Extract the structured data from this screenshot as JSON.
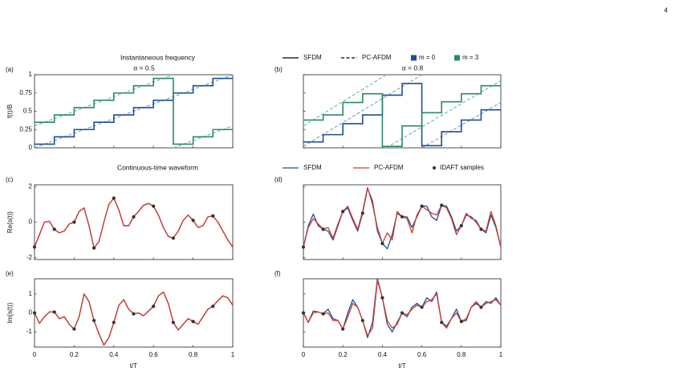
{
  "page_number": "4",
  "chart_data": [
    {
      "type": "frequency",
      "panel": "(a)",
      "title": "Instantaneous frequency",
      "subtitle": "α = 0.5",
      "ylabel": "f(t)/B",
      "xlim": [
        0,
        1
      ],
      "xticks": [
        0,
        0.2,
        0.4,
        0.6,
        0.8,
        1
      ],
      "xtick_labels": false,
      "ylim": [
        0,
        1
      ],
      "yticks": [
        0,
        0.25,
        0.5,
        0.75,
        1
      ],
      "ytick_labels": true,
      "series": [
        {
          "type": "line",
          "dashed": true,
          "color": "#6f9fd4",
          "x": [
            0,
            1
          ],
          "values": [
            0,
            1
          ]
        },
        {
          "type": "line",
          "dashed": true,
          "color": "#66b896",
          "x": [
            0,
            0.7,
            0.7,
            0.7,
            1
          ],
          "values": [
            0.3,
            1,
            null,
            0,
            0.3
          ]
        },
        {
          "type": "step",
          "color": "#1f4e96",
          "x": [
            0,
            0.1,
            0.2,
            0.3,
            0.4,
            0.5,
            0.6,
            0.7,
            0.8,
            0.9
          ],
          "values": [
            0.05,
            0.15,
            0.25,
            0.35,
            0.45,
            0.55,
            0.65,
            0.75,
            0.85,
            0.95
          ]
        },
        {
          "type": "step",
          "color": "#2a8a66",
          "x": [
            0,
            0.1,
            0.2,
            0.3,
            0.4,
            0.5,
            0.6,
            0.7,
            0.8,
            0.9
          ],
          "values": [
            0.35,
            0.45,
            0.55,
            0.65,
            0.75,
            0.85,
            0.95,
            0.05,
            0.15,
            0.25
          ]
        }
      ]
    },
    {
      "type": "frequency",
      "panel": "(b)",
      "subtitle": "α = 0.8",
      "xlim": [
        0,
        1
      ],
      "xticks": [
        0,
        0.2,
        0.4,
        0.6,
        0.8,
        1
      ],
      "xtick_labels": false,
      "ylim": [
        0,
        1
      ],
      "yticks": [
        0,
        0.25,
        0.5,
        0.75,
        1
      ],
      "ytick_labels": false,
      "legend": [
        {
          "label": "SFDM",
          "color": "#000000",
          "marker": "line"
        },
        {
          "label": "PC-AFDM",
          "color": "#000000",
          "marker": "dashed"
        },
        {
          "label": "m = 0",
          "color": "#1f4e96",
          "marker": "square"
        },
        {
          "label": "m = 3",
          "color": "#2a8a66",
          "marker": "square"
        }
      ],
      "series": [
        {
          "type": "line",
          "dashed": true,
          "color": "#6f9fd4",
          "x": [
            0,
            0.6,
            0.6,
            0.6,
            1
          ],
          "values": [
            0.02,
            1,
            null,
            0,
            0.62
          ]
        },
        {
          "type": "line",
          "dashed": true,
          "color": "#66b896",
          "x": [
            0,
            0.42,
            0.42,
            0.42,
            1
          ],
          "values": [
            0.3,
            1,
            null,
            0,
            0.92
          ]
        },
        {
          "type": "step",
          "color": "#1f4e96",
          "x": [
            0,
            0.1,
            0.2,
            0.3,
            0.4,
            0.5,
            0.6,
            0.7,
            0.8,
            0.9
          ],
          "values": [
            0.08,
            0.18,
            0.33,
            0.45,
            0.72,
            0.88,
            0.03,
            0.22,
            0.38,
            0.52
          ]
        },
        {
          "type": "step",
          "color": "#2a8a66",
          "x": [
            0,
            0.1,
            0.2,
            0.3,
            0.4,
            0.5,
            0.6,
            0.7,
            0.8,
            0.9
          ],
          "values": [
            0.38,
            0.45,
            0.62,
            0.74,
            0.02,
            0.3,
            0.48,
            0.63,
            0.74,
            0.85
          ]
        }
      ]
    },
    {
      "type": "waveform",
      "panel": "(c)",
      "title": "Continuous-time waveform",
      "ylabel": "Re{s(t)}",
      "xlim": [
        0,
        1
      ],
      "xticks": [
        0,
        0.2,
        0.4,
        0.6,
        0.8,
        1
      ],
      "xtick_labels": false,
      "ylim": [
        -2.1,
        2.1
      ],
      "yticks": [
        -2,
        0,
        2
      ],
      "ytick_labels": true,
      "x": [
        0,
        0.025,
        0.05,
        0.075,
        0.1,
        0.125,
        0.15,
        0.175,
        0.2,
        0.225,
        0.25,
        0.275,
        0.3,
        0.325,
        0.35,
        0.375,
        0.4,
        0.425,
        0.45,
        0.475,
        0.5,
        0.525,
        0.55,
        0.575,
        0.6,
        0.625,
        0.65,
        0.675,
        0.7,
        0.725,
        0.75,
        0.775,
        0.8,
        0.825,
        0.85,
        0.875,
        0.9,
        0.925,
        0.95,
        0.975,
        1
      ],
      "series": [
        {
          "type": "line",
          "color": "#1f4e96",
          "values": [
            -1.4,
            -0.7,
            0,
            0.05,
            -0.4,
            -0.6,
            -0.5,
            -0.1,
            0,
            0.6,
            0.8,
            -0.2,
            -1.45,
            -1.1,
            0,
            1.0,
            1.35,
            0.7,
            -0.2,
            -0.2,
            0.3,
            0.6,
            0.95,
            1.05,
            0.9,
            0.4,
            -0.3,
            -0.8,
            -0.9,
            -0.5,
            0.1,
            0.4,
            0.1,
            -0.3,
            -0.2,
            0.3,
            0.35,
            0,
            -0.5,
            -1.0,
            -1.4
          ]
        },
        {
          "type": "line",
          "color": "#d03a2a",
          "values": [
            -1.4,
            -0.7,
            0,
            0.05,
            -0.4,
            -0.6,
            -0.5,
            -0.1,
            0,
            0.6,
            0.8,
            -0.2,
            -1.45,
            -1.1,
            0,
            1.0,
            1.35,
            0.7,
            -0.2,
            -0.2,
            0.3,
            0.6,
            0.95,
            1.05,
            0.9,
            0.4,
            -0.3,
            -0.8,
            -0.9,
            -0.5,
            0.1,
            0.4,
            0.1,
            -0.3,
            -0.2,
            0.3,
            0.35,
            0,
            -0.5,
            -1.0,
            -1.4
          ]
        },
        {
          "type": "scatter",
          "color": "#333333",
          "x": [
            0,
            0.1,
            0.2,
            0.3,
            0.4,
            0.5,
            0.6,
            0.7,
            0.8,
            0.9
          ],
          "values": [
            -1.4,
            -0.4,
            0,
            -1.45,
            1.35,
            0.3,
            0.9,
            -0.9,
            0.1,
            0.35
          ]
        }
      ]
    },
    {
      "type": "waveform",
      "panel": "(d)",
      "xlim": [
        0,
        1
      ],
      "xticks": [
        0,
        0.2,
        0.4,
        0.6,
        0.8,
        1
      ],
      "xtick_labels": false,
      "ylim": [
        -2.1,
        2.1
      ],
      "yticks": [
        -2,
        0,
        2
      ],
      "ytick_labels": false,
      "legend": true,
      "x": [
        0,
        0.025,
        0.05,
        0.075,
        0.1,
        0.125,
        0.15,
        0.175,
        0.2,
        0.225,
        0.25,
        0.275,
        0.3,
        0.325,
        0.35,
        0.375,
        0.4,
        0.425,
        0.45,
        0.475,
        0.5,
        0.525,
        0.55,
        0.575,
        0.6,
        0.625,
        0.65,
        0.675,
        0.7,
        0.725,
        0.75,
        0.775,
        0.8,
        0.825,
        0.85,
        0.875,
        0.9,
        0.925,
        0.95,
        0.975,
        1
      ],
      "series": [
        {
          "type": "line",
          "name": "SFDM",
          "color": "#1f4e96",
          "values": [
            -1.4,
            -0.2,
            0.45,
            -0.2,
            -0.4,
            -0.5,
            -1.0,
            -0.2,
            0.6,
            0.8,
            0.1,
            -0.5,
            0.5,
            1.9,
            1.2,
            -0.5,
            -1.2,
            -1.5,
            -0.7,
            0.5,
            0.3,
            0.3,
            -0.3,
            0.3,
            0.9,
            0.9,
            0.3,
            0.1,
            0.95,
            0.9,
            0.3,
            -0.5,
            -0.2,
            0.4,
            0.3,
            0,
            -0.4,
            -0.6,
            0.4,
            -0.3,
            -1.4
          ]
        },
        {
          "type": "line",
          "name": "PC-AFDM",
          "color": "#d03a2a",
          "values": [
            -1.4,
            -0.3,
            0.2,
            -0.1,
            -0.4,
            -0.3,
            -0.9,
            -0.1,
            0.6,
            0.9,
            0.2,
            -0.4,
            0.6,
            1.95,
            1.0,
            -0.3,
            -1.2,
            -0.6,
            -1.0,
            0.6,
            0.3,
            0.2,
            -0.6,
            0.4,
            0.9,
            0.7,
            0.5,
            0.4,
            0.95,
            0.8,
            0.2,
            -0.7,
            -0.2,
            0.5,
            0.2,
            0.1,
            -0.4,
            -0.5,
            0.6,
            -0.2,
            -1.4
          ]
        },
        {
          "type": "scatter",
          "name": "IDAFT samples",
          "color": "#333333",
          "x": [
            0,
            0.1,
            0.2,
            0.3,
            0.4,
            0.5,
            0.6,
            0.7,
            0.8,
            0.9
          ],
          "values": [
            -1.4,
            -0.4,
            0.6,
            0.5,
            -1.2,
            0.3,
            0.9,
            0.95,
            -0.2,
            -0.4
          ]
        }
      ]
    },
    {
      "type": "waveform",
      "panel": "(e)",
      "ylabel": "Im{s(t)}",
      "xlabel": "t/T",
      "xlim": [
        0,
        1
      ],
      "xticks": [
        0,
        0.2,
        0.4,
        0.6,
        0.8,
        1
      ],
      "xtick_labels": true,
      "ylim": [
        -1.8,
        1.8
      ],
      "yticks": [
        -1,
        0,
        1
      ],
      "ytick_labels": true,
      "x": [
        0,
        0.025,
        0.05,
        0.075,
        0.1,
        0.125,
        0.15,
        0.175,
        0.2,
        0.225,
        0.25,
        0.275,
        0.3,
        0.325,
        0.35,
        0.375,
        0.4,
        0.425,
        0.45,
        0.475,
        0.5,
        0.525,
        0.55,
        0.575,
        0.6,
        0.625,
        0.65,
        0.675,
        0.7,
        0.725,
        0.75,
        0.775,
        0.8,
        0.825,
        0.85,
        0.875,
        0.9,
        0.925,
        0.95,
        0.975,
        1
      ],
      "series": [
        {
          "type": "line",
          "color": "#1f4e96",
          "values": [
            0,
            -0.55,
            -0.2,
            0.05,
            0.05,
            -0.3,
            -0.2,
            -0.6,
            -0.85,
            -0.2,
            1.0,
            0.6,
            -0.4,
            -1.1,
            -1.7,
            -1.3,
            -0.5,
            0.4,
            0.7,
            0.2,
            -0.05,
            0,
            -0.15,
            0.1,
            0.35,
            0.9,
            1.1,
            0.5,
            -0.5,
            -0.9,
            -0.6,
            -0.3,
            -0.45,
            -0.6,
            -0.2,
            0.2,
            0.35,
            0.65,
            0.9,
            0.8,
            0.4
          ]
        },
        {
          "type": "line",
          "color": "#d03a2a",
          "values": [
            0,
            -0.55,
            -0.2,
            0.05,
            0.05,
            -0.3,
            -0.2,
            -0.6,
            -0.85,
            -0.2,
            1.0,
            0.6,
            -0.4,
            -1.1,
            -1.7,
            -1.3,
            -0.5,
            0.4,
            0.7,
            0.2,
            -0.05,
            0,
            -0.15,
            0.1,
            0.35,
            0.9,
            1.1,
            0.5,
            -0.5,
            -0.9,
            -0.6,
            -0.3,
            -0.45,
            -0.6,
            -0.2,
            0.2,
            0.35,
            0.65,
            0.9,
            0.8,
            0.4
          ]
        },
        {
          "type": "scatter",
          "color": "#333333",
          "x": [
            0,
            0.1,
            0.2,
            0.3,
            0.4,
            0.5,
            0.6,
            0.7,
            0.8,
            0.9
          ],
          "values": [
            0,
            0.05,
            -0.85,
            -0.4,
            -0.5,
            -0.05,
            0.35,
            -0.5,
            -0.45,
            0.35
          ]
        }
      ]
    },
    {
      "type": "waveform",
      "panel": "(f)",
      "xlabel": "t/T",
      "xlim": [
        0,
        1
      ],
      "xticks": [
        0,
        0.2,
        0.4,
        0.6,
        0.8,
        1
      ],
      "xtick_labels": true,
      "ylim": [
        -1.8,
        1.8
      ],
      "yticks": [
        -1,
        0,
        1
      ],
      "ytick_labels": false,
      "x": [
        0,
        0.025,
        0.05,
        0.075,
        0.1,
        0.125,
        0.15,
        0.175,
        0.2,
        0.225,
        0.25,
        0.275,
        0.3,
        0.325,
        0.35,
        0.375,
        0.4,
        0.425,
        0.45,
        0.475,
        0.5,
        0.525,
        0.55,
        0.575,
        0.6,
        0.625,
        0.65,
        0.675,
        0.7,
        0.725,
        0.75,
        0.775,
        0.8,
        0.825,
        0.85,
        0.875,
        0.9,
        0.925,
        0.95,
        0.975,
        1
      ],
      "series": [
        {
          "type": "line",
          "color": "#1f4e96",
          "values": [
            0,
            -0.5,
            0.1,
            0.05,
            -0.05,
            0.2,
            -0.3,
            -0.4,
            -0.85,
            0,
            0.7,
            0.3,
            -0.4,
            -1.3,
            -0.5,
            1.8,
            0.8,
            -0.6,
            -1.0,
            -0.5,
            0,
            -0.2,
            0.3,
            0.5,
            0.3,
            0.8,
            0.6,
            1.1,
            -0.5,
            -0.7,
            -0.3,
            0.2,
            -0.45,
            -0.4,
            0.3,
            0.5,
            0.3,
            0.6,
            0.5,
            0.8,
            0.4
          ]
        },
        {
          "type": "line",
          "color": "#d03a2a",
          "values": [
            0,
            -0.5,
            0,
            0.05,
            -0.05,
            0,
            -0.4,
            -0.4,
            -0.85,
            -0.2,
            0.5,
            0.3,
            -0.4,
            -1.2,
            -0.8,
            1.7,
            0.8,
            -0.4,
            -0.8,
            -0.6,
            0,
            -0.1,
            0.2,
            0.4,
            0.3,
            0.6,
            0.7,
            1.0,
            -0.5,
            -0.8,
            -0.3,
            0,
            -0.45,
            -0.3,
            0.3,
            0.6,
            0.3,
            0.5,
            0.6,
            0.7,
            0.4
          ]
        },
        {
          "type": "scatter",
          "color": "#333333",
          "x": [
            0,
            0.1,
            0.2,
            0.3,
            0.4,
            0.5,
            0.6,
            0.7,
            0.8,
            0.9
          ],
          "values": [
            0,
            -0.05,
            -0.85,
            -0.4,
            0.8,
            0,
            0.3,
            -0.5,
            -0.45,
            0.3
          ]
        }
      ]
    }
  ]
}
